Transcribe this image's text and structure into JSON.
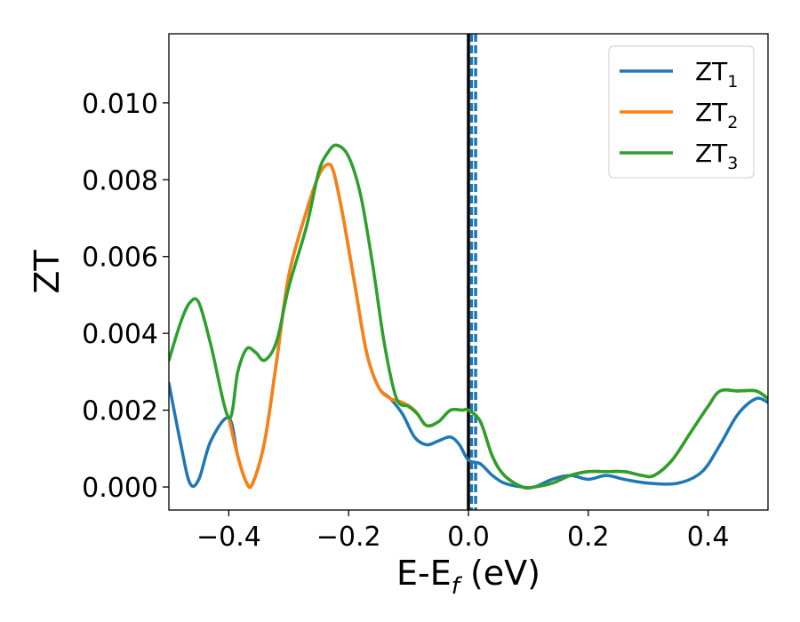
{
  "chart_data": {
    "type": "line",
    "title": "",
    "xlabel": "E-E",
    "xlabel_sub": "f",
    "xlabel_unit": " (eV)",
    "ylabel": "ZT",
    "xlim": [
      -0.5,
      0.5
    ],
    "ylim": [
      -0.0006,
      0.0118
    ],
    "xticks": [
      -0.4,
      -0.2,
      0.0,
      0.2,
      0.4
    ],
    "xtick_labels": [
      "−0.4",
      "−0.2",
      "0.0",
      "0.2",
      "0.4"
    ],
    "yticks": [
      0.0,
      0.002,
      0.004,
      0.006,
      0.008,
      0.01
    ],
    "ytick_labels": [
      "0.000",
      "0.002",
      "0.004",
      "0.006",
      "0.008",
      "0.010"
    ],
    "grid": false,
    "legend_position": "top-right",
    "series": [
      {
        "name": "ZT",
        "name_sub": "1",
        "color": "#1f77b4",
        "points": [
          [
            -0.5,
            0.0027
          ],
          [
            -0.48,
            0.0011
          ],
          [
            -0.465,
            0.0001
          ],
          [
            -0.45,
            0.0002
          ],
          [
            -0.43,
            0.0012
          ],
          [
            -0.4,
            0.0018
          ],
          [
            -0.385,
            0.0008
          ],
          [
            -0.37,
            0.0001
          ],
          [
            -0.36,
            0.0001
          ],
          [
            -0.34,
            0.0012
          ],
          [
            -0.32,
            0.0033
          ],
          [
            -0.3,
            0.0055
          ],
          [
            -0.27,
            0.0072
          ],
          [
            -0.25,
            0.0081
          ],
          [
            -0.235,
            0.0084
          ],
          [
            -0.225,
            0.0082
          ],
          [
            -0.21,
            0.0071
          ],
          [
            -0.19,
            0.0053
          ],
          [
            -0.17,
            0.0035
          ],
          [
            -0.15,
            0.0026
          ],
          [
            -0.13,
            0.0023
          ],
          [
            -0.11,
            0.0019
          ],
          [
            -0.09,
            0.0013
          ],
          [
            -0.07,
            0.0011
          ],
          [
            -0.05,
            0.0012
          ],
          [
            -0.03,
            0.0013
          ],
          [
            -0.015,
            0.0011
          ],
          [
            0.0,
            0.0007
          ],
          [
            0.02,
            0.0006
          ],
          [
            0.04,
            0.0003
          ],
          [
            0.06,
            0.0001
          ],
          [
            0.09,
            0.0
          ],
          [
            0.11,
            0.0
          ],
          [
            0.14,
            0.0002
          ],
          [
            0.17,
            0.0003
          ],
          [
            0.2,
            0.0002
          ],
          [
            0.23,
            0.0003
          ],
          [
            0.26,
            0.0002
          ],
          [
            0.3,
            0.0001
          ],
          [
            0.35,
            0.0001
          ],
          [
            0.39,
            0.0004
          ],
          [
            0.42,
            0.0011
          ],
          [
            0.45,
            0.0019
          ],
          [
            0.48,
            0.0023
          ],
          [
            0.5,
            0.0022
          ]
        ]
      },
      {
        "name": "ZT",
        "name_sub": "2",
        "color": "#ff7f0e",
        "points": [
          [
            -0.4,
            0.0018
          ],
          [
            -0.385,
            0.0008
          ],
          [
            -0.37,
            0.0001
          ],
          [
            -0.36,
            0.0001
          ],
          [
            -0.34,
            0.0012
          ],
          [
            -0.32,
            0.0033
          ],
          [
            -0.3,
            0.0055
          ],
          [
            -0.27,
            0.0072
          ],
          [
            -0.25,
            0.0081
          ],
          [
            -0.235,
            0.0084
          ],
          [
            -0.225,
            0.0082
          ],
          [
            -0.21,
            0.0071
          ],
          [
            -0.19,
            0.0053
          ],
          [
            -0.17,
            0.0035
          ],
          [
            -0.15,
            0.0026
          ],
          [
            -0.13,
            0.0023
          ],
          [
            -0.11,
            0.0022
          ],
          [
            -0.09,
            0.002
          ],
          [
            -0.07,
            0.0016
          ],
          [
            -0.05,
            0.0017
          ],
          [
            -0.03,
            0.002
          ],
          [
            -0.01,
            0.002
          ],
          [
            0.0,
            0.002
          ],
          [
            0.02,
            0.0017
          ],
          [
            0.04,
            0.0008
          ],
          [
            0.06,
            0.0003
          ],
          [
            0.09,
            0.0
          ],
          [
            0.11,
            0.0
          ],
          [
            0.14,
            0.0001
          ],
          [
            0.17,
            0.0003
          ],
          [
            0.2,
            0.0004
          ],
          [
            0.23,
            0.0004
          ],
          [
            0.26,
            0.0004
          ],
          [
            0.29,
            0.0003
          ],
          [
            0.31,
            0.0003
          ],
          [
            0.34,
            0.0007
          ],
          [
            0.37,
            0.0014
          ],
          [
            0.4,
            0.0021
          ],
          [
            0.42,
            0.0025
          ],
          [
            0.45,
            0.0025
          ],
          [
            0.48,
            0.0025
          ],
          [
            0.5,
            0.0023
          ]
        ]
      },
      {
        "name": "ZT",
        "name_sub": "3",
        "color": "#2ca02c",
        "points": [
          [
            -0.5,
            0.0033
          ],
          [
            -0.48,
            0.0043
          ],
          [
            -0.465,
            0.0048
          ],
          [
            -0.45,
            0.0048
          ],
          [
            -0.43,
            0.0037
          ],
          [
            -0.4,
            0.0018
          ],
          [
            -0.385,
            0.003
          ],
          [
            -0.37,
            0.0036
          ],
          [
            -0.355,
            0.0035
          ],
          [
            -0.34,
            0.0033
          ],
          [
            -0.32,
            0.0038
          ],
          [
            -0.3,
            0.0052
          ],
          [
            -0.27,
            0.0068
          ],
          [
            -0.25,
            0.0082
          ],
          [
            -0.235,
            0.0087
          ],
          [
            -0.22,
            0.0089
          ],
          [
            -0.2,
            0.0086
          ],
          [
            -0.18,
            0.0076
          ],
          [
            -0.16,
            0.0058
          ],
          [
            -0.14,
            0.0037
          ],
          [
            -0.12,
            0.0023
          ],
          [
            -0.1,
            0.0021
          ],
          [
            -0.085,
            0.0019
          ],
          [
            -0.07,
            0.0016
          ],
          [
            -0.05,
            0.0017
          ],
          [
            -0.03,
            0.002
          ],
          [
            -0.01,
            0.002
          ],
          [
            0.0,
            0.002
          ],
          [
            0.02,
            0.0017
          ],
          [
            0.04,
            0.0008
          ],
          [
            0.06,
            0.0003
          ],
          [
            0.09,
            0.0
          ],
          [
            0.11,
            0.0
          ],
          [
            0.14,
            0.0001
          ],
          [
            0.17,
            0.0003
          ],
          [
            0.2,
            0.0004
          ],
          [
            0.23,
            0.0004
          ],
          [
            0.26,
            0.0004
          ],
          [
            0.29,
            0.0003
          ],
          [
            0.31,
            0.0003
          ],
          [
            0.34,
            0.0007
          ],
          [
            0.37,
            0.0014
          ],
          [
            0.4,
            0.0021
          ],
          [
            0.42,
            0.0025
          ],
          [
            0.45,
            0.0025
          ],
          [
            0.48,
            0.0025
          ],
          [
            0.5,
            0.0023
          ]
        ]
      }
    ],
    "vertical_lines": [
      {
        "x": 0.0,
        "color": "#000000",
        "style": "solid"
      },
      {
        "x": 0.005,
        "color": "#1f77b4",
        "style": "dashed"
      },
      {
        "x": 0.012,
        "color": "#1f77b4",
        "style": "dashed"
      }
    ]
  }
}
